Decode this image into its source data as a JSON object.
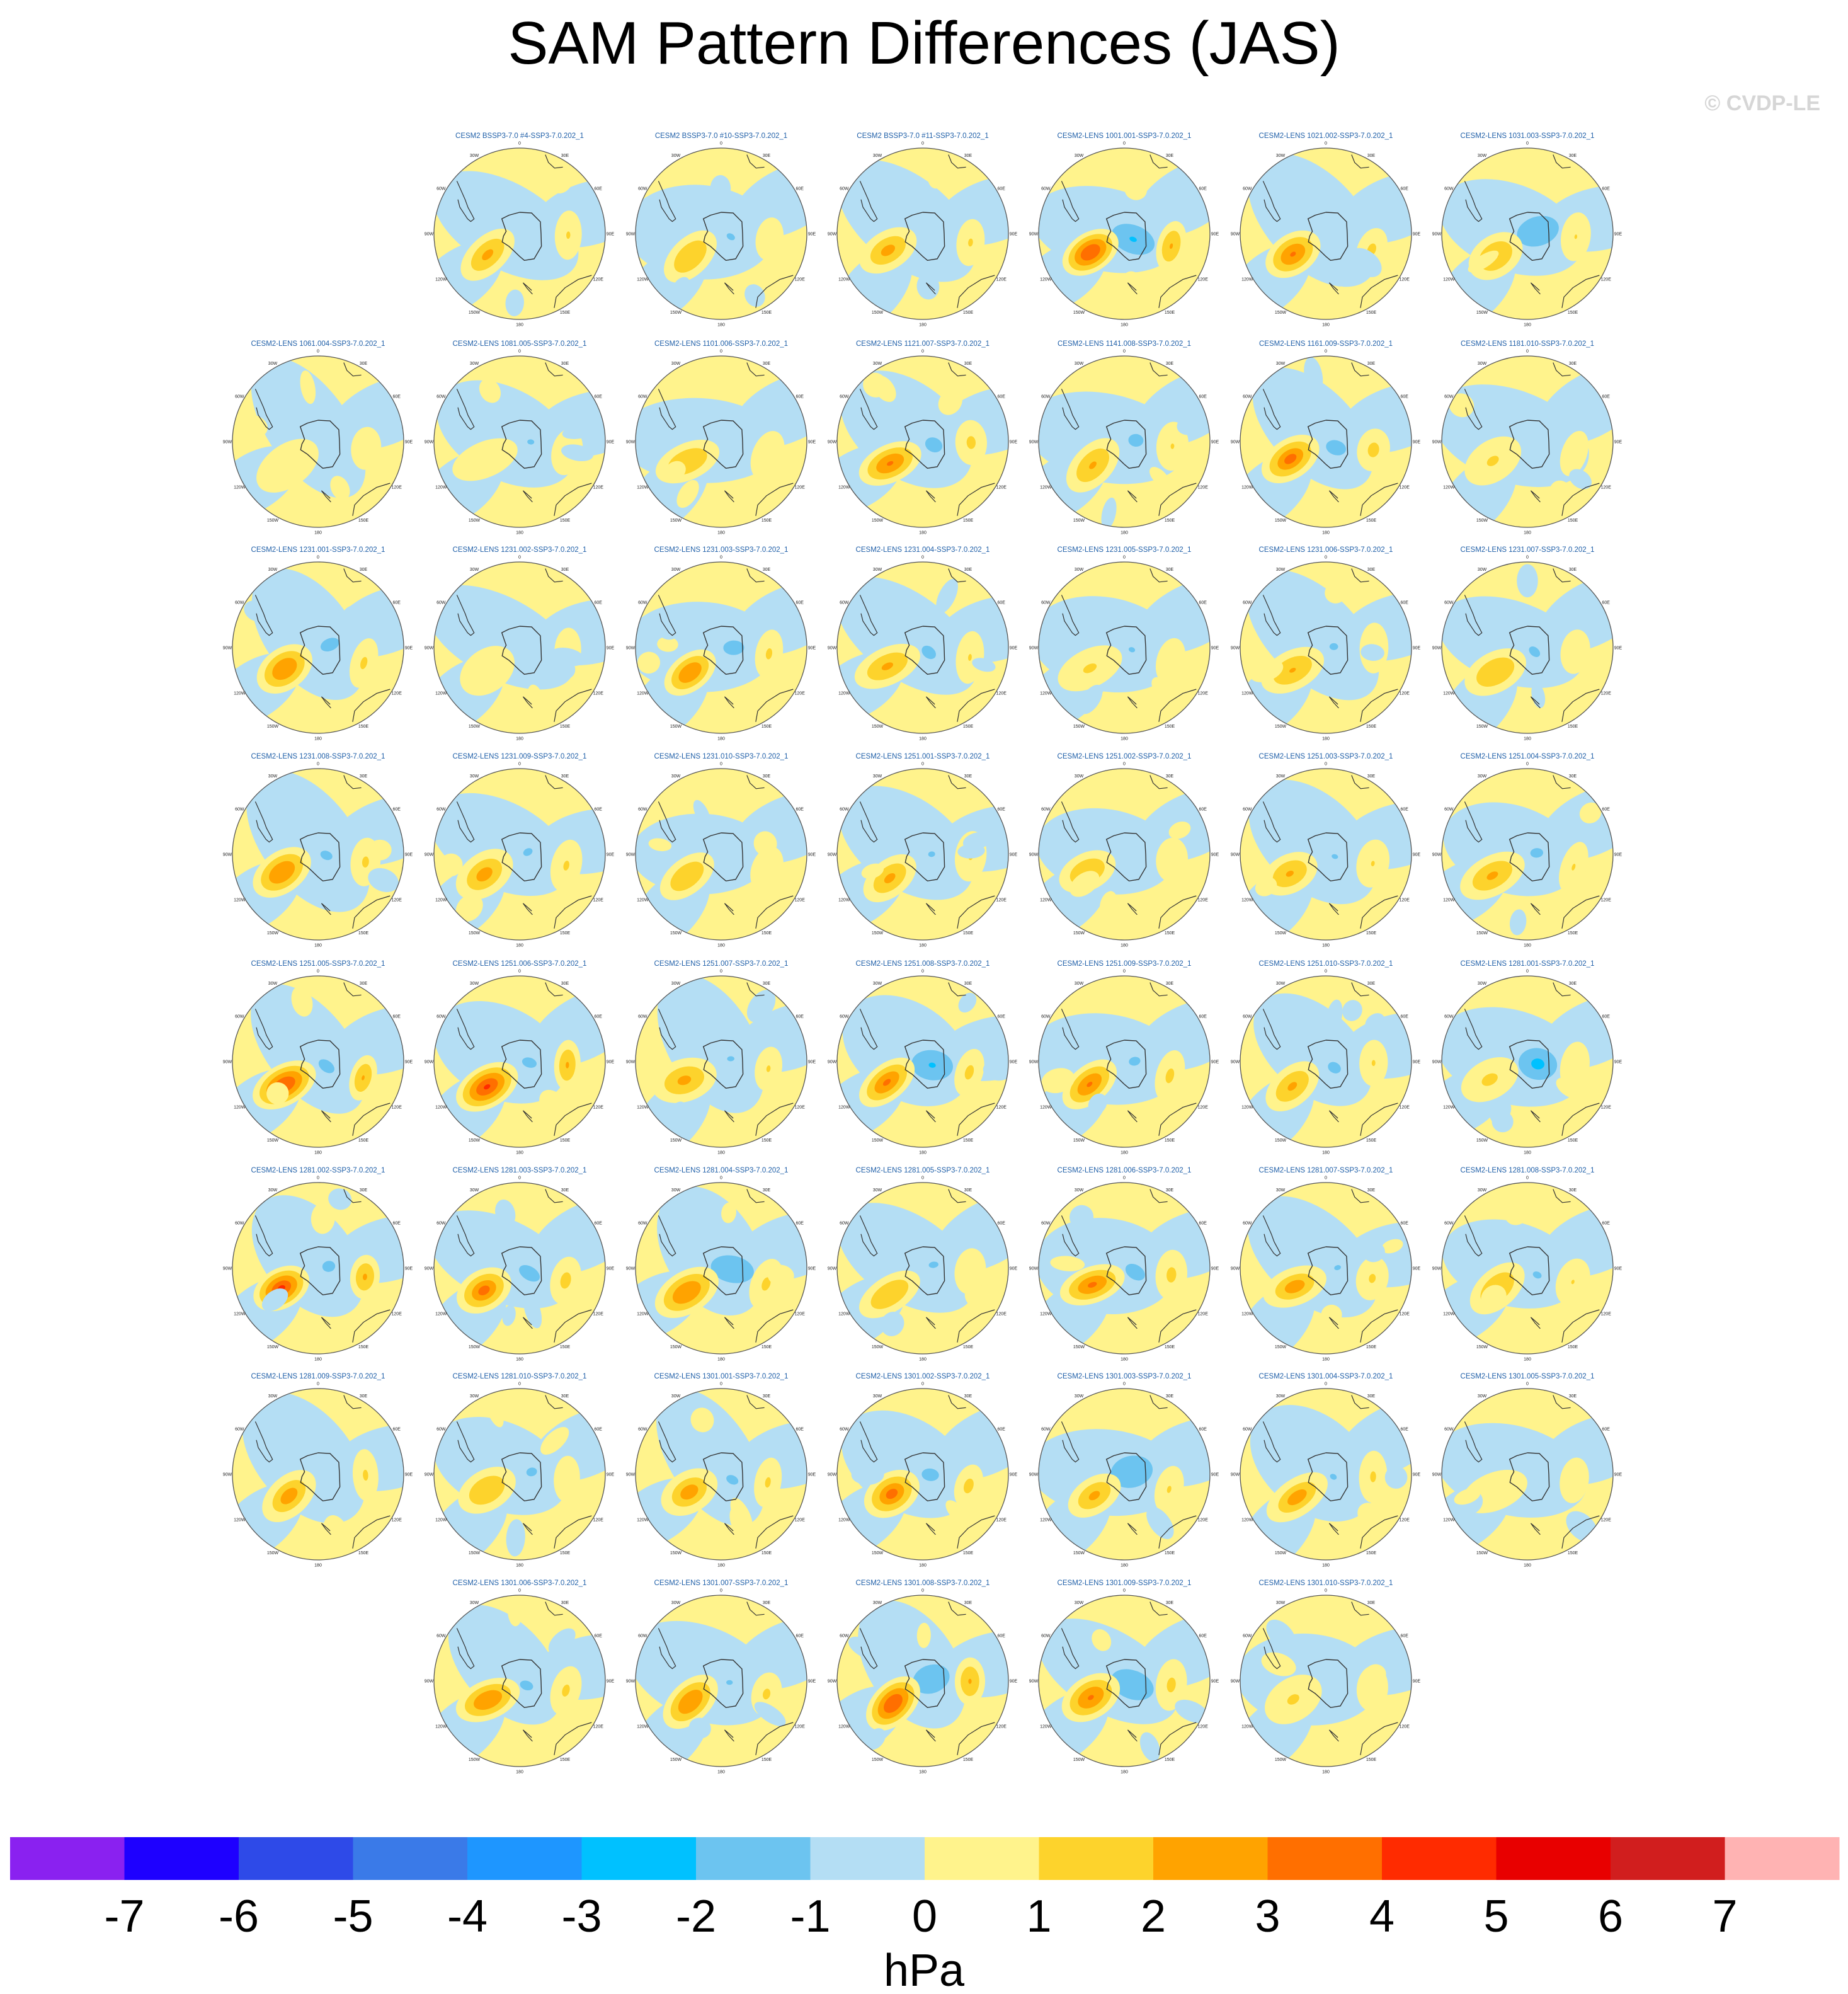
{
  "title": "SAM Pattern Differences (JAS)",
  "watermark": "© CVDP-LE",
  "colors": {
    "panel_title": "#1f5fa8",
    "border": "#555555",
    "coast": "#333333"
  },
  "chart_data": {
    "type": "heatmap",
    "projection": "south-polar-stereographic",
    "longitude_labels": [
      "0",
      "30E",
      "60E",
      "90E",
      "120E",
      "150E",
      "180",
      "150W",
      "120W",
      "90W",
      "60W",
      "30W"
    ],
    "colorbar": {
      "units": "hPa",
      "tick_labels": [
        "-7",
        "-6",
        "-5",
        "-4",
        "-3",
        "-2",
        "-1",
        "0",
        "1",
        "2",
        "3",
        "4",
        "5",
        "6",
        "7"
      ],
      "colors": [
        "#8A21F0",
        "#1E00FF",
        "#2E4AE8",
        "#3A7AE8",
        "#1E96FF",
        "#00C1FF",
        "#6CC4F0",
        "#B4DEF4",
        "#FFF38C",
        "#FDD32C",
        "#FFA300",
        "#FF6F00",
        "#FF2B00",
        "#E80000",
        "#D11E1E",
        "#FFB3B3"
      ]
    },
    "rows": [
      {
        "start_col": 1,
        "panels": [
          {
            "name": "CESM2 BSSP3-7.0 #4-SSP3-7.0.202_1",
            "pos": 2.6,
            "neg": -0.9
          },
          {
            "name": "CESM2 BSSP3-7.0 #10-SSP3-7.0.202_1",
            "pos": 2.2,
            "neg": -1.4
          },
          {
            "name": "CESM2 BSSP3-7.0 #11-SSP3-7.0.202_1",
            "pos": 2.7,
            "neg": -1.2
          },
          {
            "name": "CESM2-LENS 1001.001-SSP3-7.0.202_1",
            "pos": 4.2,
            "neg": -2.3
          },
          {
            "name": "CESM2-LENS 1021.002-SSP3-7.0.202_1",
            "pos": 3.3,
            "neg": -1.2
          },
          {
            "name": "CESM2-LENS 1031.003-SSP3-7.0.202_1",
            "pos": 2.3,
            "neg": -2.2
          }
        ]
      },
      {
        "start_col": 0,
        "panels": [
          {
            "name": "CESM2-LENS 1061.004-SSP3-7.0.202_1",
            "pos": 0.8,
            "neg": -1.1
          },
          {
            "name": "CESM2-LENS 1081.005-SSP3-7.0.202_1",
            "pos": 0.9,
            "neg": -1.3
          },
          {
            "name": "CESM2-LENS 1101.006-SSP3-7.0.202_1",
            "pos": 2.1,
            "neg": -1.2
          },
          {
            "name": "CESM2-LENS 1121.007-SSP3-7.0.202_1",
            "pos": 3.3,
            "neg": -1.8
          },
          {
            "name": "CESM2-LENS 1141.008-SSP3-7.0.202_1",
            "pos": 2.4,
            "neg": -1.7
          },
          {
            "name": "CESM2-LENS 1161.009-SSP3-7.0.202_1",
            "pos": 3.6,
            "neg": -1.8
          },
          {
            "name": "CESM2-LENS 1181.010-SSP3-7.0.202_1",
            "pos": 1.6,
            "neg": -1.1
          }
        ]
      },
      {
        "start_col": 0,
        "panels": [
          {
            "name": "CESM2-LENS 1231.001-SSP3-7.0.202_1",
            "pos": 3.1,
            "neg": -1.8
          },
          {
            "name": "CESM2-LENS 1231.002-SSP3-7.0.202_1",
            "pos": 0.9,
            "neg": -1.2
          },
          {
            "name": "CESM2-LENS 1231.003-SSP3-7.0.202_1",
            "pos": 3.0,
            "neg": -1.9
          },
          {
            "name": "CESM2-LENS 1231.004-SSP3-7.0.202_1",
            "pos": 2.5,
            "neg": -1.7
          },
          {
            "name": "CESM2-LENS 1231.005-SSP3-7.0.202_1",
            "pos": 1.6,
            "neg": -1.3
          },
          {
            "name": "CESM2-LENS 1231.006-SSP3-7.0.202_1",
            "pos": 2.3,
            "neg": -1.4
          },
          {
            "name": "CESM2-LENS 1231.007-SSP3-7.0.202_1",
            "pos": 2.2,
            "neg": -1.5
          }
        ]
      },
      {
        "start_col": 0,
        "panels": [
          {
            "name": "CESM2-LENS 1231.008-SSP3-7.0.202_1",
            "pos": 3.0,
            "neg": -1.5
          },
          {
            "name": "CESM2-LENS 1231.009-SSP3-7.0.202_1",
            "pos": 2.8,
            "neg": -1.4
          },
          {
            "name": "CESM2-LENS 1231.010-SSP3-7.0.202_1",
            "pos": 2.2,
            "neg": -1.2
          },
          {
            "name": "CESM2-LENS 1251.001-SSP3-7.0.202_1",
            "pos": 2.6,
            "neg": -1.3
          },
          {
            "name": "CESM2-LENS 1251.002-SSP3-7.0.202_1",
            "pos": 2.1,
            "neg": -1.2
          },
          {
            "name": "CESM2-LENS 1251.003-SSP3-7.0.202_1",
            "pos": 2.4,
            "neg": -1.3
          },
          {
            "name": "CESM2-LENS 1251.004-SSP3-7.0.202_1",
            "pos": 2.5,
            "neg": -1.6
          }
        ]
      },
      {
        "start_col": 0,
        "panels": [
          {
            "name": "CESM2-LENS 1251.005-SSP3-7.0.202_1",
            "pos": 4.2,
            "neg": -1.7
          },
          {
            "name": "CESM2-LENS 1251.006-SSP3-7.0.202_1",
            "pos": 4.3,
            "neg": -1.6
          },
          {
            "name": "CESM2-LENS 1251.007-SSP3-7.0.202_1",
            "pos": 2.6,
            "neg": -1.3
          },
          {
            "name": "CESM2-LENS 1251.008-SSP3-7.0.202_1",
            "pos": 3.4,
            "neg": -2.3
          },
          {
            "name": "CESM2-LENS 1251.009-SSP3-7.0.202_1",
            "pos": 3.3,
            "neg": -1.5
          },
          {
            "name": "CESM2-LENS 1251.010-SSP3-7.0.202_1",
            "pos": 2.5,
            "neg": -1.6
          },
          {
            "name": "CESM2-LENS 1281.001-SSP3-7.0.202_1",
            "pos": 1.8,
            "neg": -2.6
          }
        ]
      },
      {
        "start_col": 0,
        "panels": [
          {
            "name": "CESM2-LENS 1281.002-SSP3-7.0.202_1",
            "pos": 4.4,
            "neg": -1.6
          },
          {
            "name": "CESM2-LENS 1281.003-SSP3-7.0.202_1",
            "pos": 3.6,
            "neg": -1.9
          },
          {
            "name": "CESM2-LENS 1281.004-SSP3-7.0.202_1",
            "pos": 3.2,
            "neg": -2.1
          },
          {
            "name": "CESM2-LENS 1281.005-SSP3-7.0.202_1",
            "pos": 2.0,
            "neg": -1.4
          },
          {
            "name": "CESM2-LENS 1281.006-SSP3-7.0.202_1",
            "pos": 3.4,
            "neg": -1.9
          },
          {
            "name": "CESM2-LENS 1281.007-SSP3-7.0.202_1",
            "pos": 2.9,
            "neg": -1.3
          },
          {
            "name": "CESM2-LENS 1281.008-SSP3-7.0.202_1",
            "pos": 2.3,
            "neg": -1.4
          }
        ]
      },
      {
        "start_col": 0,
        "panels": [
          {
            "name": "CESM2-LENS 1281.009-SSP3-7.0.202_1",
            "pos": 2.9,
            "neg": -1.1
          },
          {
            "name": "CESM2-LENS 1281.010-SSP3-7.0.202_1",
            "pos": 2.2,
            "neg": -1.5
          },
          {
            "name": "CESM2-LENS 1301.001-SSP3-7.0.202_1",
            "pos": 2.9,
            "neg": -1.5
          },
          {
            "name": "CESM2-LENS 1301.002-SSP3-7.0.202_1",
            "pos": 3.6,
            "neg": -1.7
          },
          {
            "name": "CESM2-LENS 1301.003-SSP3-7.0.202_1",
            "pos": 2.6,
            "neg": -2.1
          },
          {
            "name": "CESM2-LENS 1301.004-SSP3-7.0.202_1",
            "pos": 2.9,
            "neg": -1.3
          },
          {
            "name": "CESM2-LENS 1301.005-SSP3-7.0.202_1",
            "pos": 0.8,
            "neg": -1.1
          }
        ]
      },
      {
        "start_col": 1,
        "panels": [
          {
            "name": "CESM2-LENS 1301.006-SSP3-7.0.202_1",
            "pos": 3.1,
            "neg": -1.6
          },
          {
            "name": "CESM2-LENS 1301.007-SSP3-7.0.202_1",
            "pos": 3.1,
            "neg": -1.3
          },
          {
            "name": "CESM2-LENS 1301.008-SSP3-7.0.202_1",
            "pos": 4.2,
            "neg": -2.1
          },
          {
            "name": "CESM2-LENS 1301.009-SSP3-7.0.202_1",
            "pos": 3.3,
            "neg": -2.2
          },
          {
            "name": "CESM2-LENS 1301.010-SSP3-7.0.202_1",
            "pos": 1.6,
            "neg": -1.0
          }
        ]
      }
    ]
  }
}
